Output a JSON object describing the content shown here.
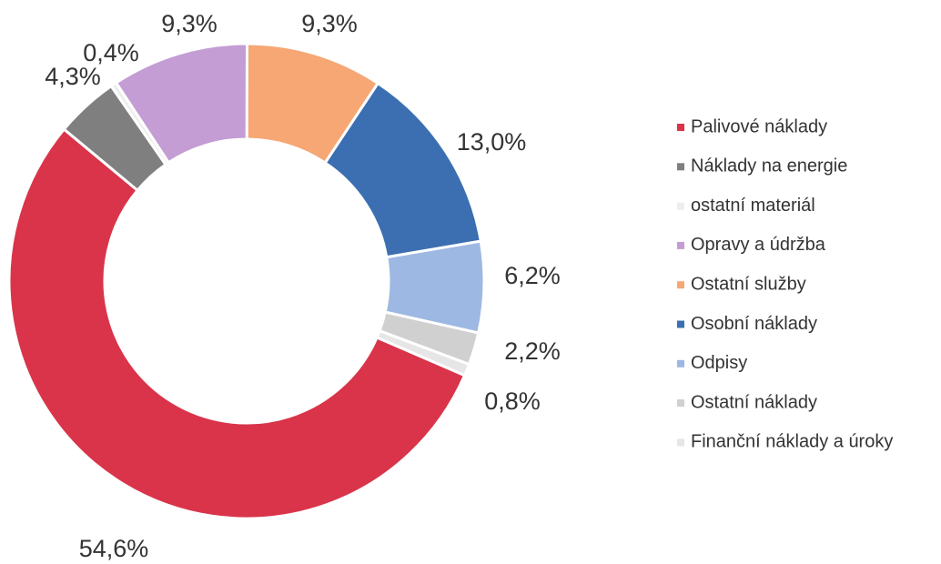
{
  "chart_data": {
    "type": "donut",
    "categories": [
      "Palivové náklady",
      "Náklady na energie",
      "ostatní materiál",
      "Opravy a údržba",
      "Ostatní služby",
      "Osobní náklady",
      "Odpisy",
      "Ostatní náklady",
      "Finanční náklady a úroky"
    ],
    "values": [
      54.6,
      4.3,
      0.4,
      9.3,
      9.3,
      13.0,
      6.2,
      2.2,
      0.8
    ],
    "value_labels": [
      "54,6%",
      "4,3%",
      "0,4%",
      "9,3%",
      "9,3%",
      "13,0%",
      "6,2%",
      "2,2%",
      "0,8%"
    ],
    "colors": [
      "#d9344a",
      "#7f7f7f",
      "#eeeeee",
      "#c49dd4",
      "#f6a774",
      "#3b6fb1",
      "#9db8e2",
      "#d0d0d0",
      "#e6e6e6"
    ],
    "legend": "right"
  }
}
